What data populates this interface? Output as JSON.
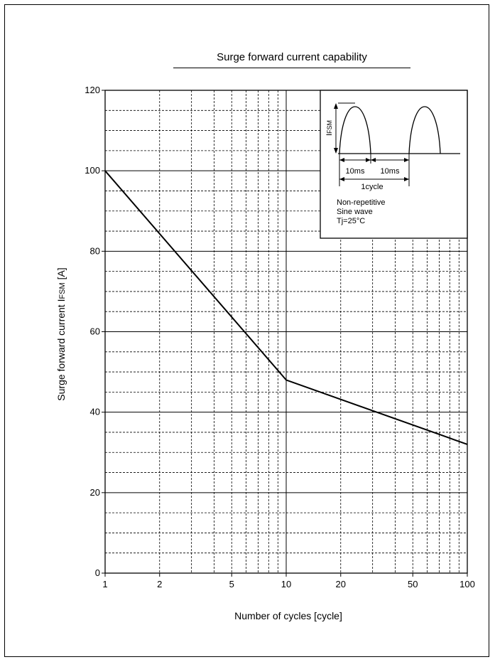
{
  "chart_data": {
    "type": "line",
    "title": "Surge forward current capability",
    "xlabel": "Number of cycles  [cycle]",
    "ylabel_parts": {
      "main": "Surge forward  current  I",
      "sub": "FSM",
      "unit": "  [A]"
    },
    "x_scale": "log",
    "xlim": [
      1,
      100
    ],
    "ylim": [
      0,
      120
    ],
    "x_tick_labels": [
      "1",
      "2",
      "5",
      "10",
      "20",
      "50",
      "100"
    ],
    "y_tick_labels": [
      "0",
      "20",
      "40",
      "60",
      "80",
      "100",
      "120"
    ],
    "grid": true,
    "series": [
      {
        "x": [
          1,
          10,
          100
        ],
        "y": [
          100,
          48,
          32
        ]
      }
    ],
    "inset": {
      "ifsm_label": "I",
      "ifsm_sub": "FSM",
      "pulse1_label": "10ms",
      "pulse2_label": "10ms",
      "cycle_label": "1cycle",
      "notes": [
        "Non-repetitive",
        "Sine wave",
        "Tj=25°C"
      ]
    }
  }
}
